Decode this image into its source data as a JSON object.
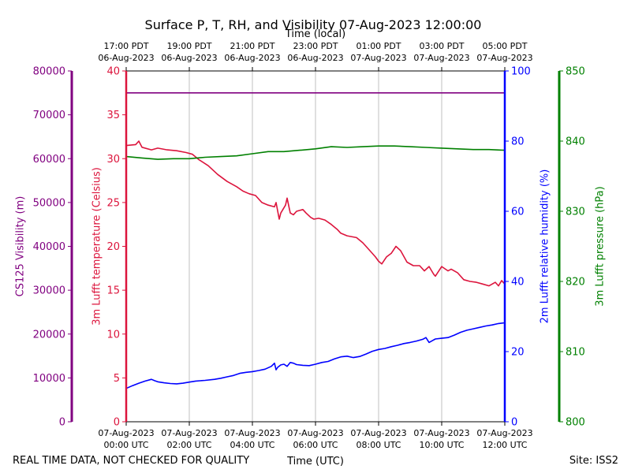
{
  "chart_data": {
    "type": "line",
    "title": "Surface P, T, RH, and Visibility 07-Aug-2023 12:00:00",
    "top_axis_label": "Time (local)",
    "xlabel": "Time (UTC)",
    "footer_left": "REAL TIME DATA, NOT CHECKED FOR QUALITY",
    "footer_right": "Site: ISS2",
    "x_hours_range": [
      0,
      12
    ],
    "x_ticks_bottom": [
      {
        "hour": 0,
        "line1": "07-Aug-2023",
        "line2": "00:00 UTC"
      },
      {
        "hour": 2,
        "line1": "07-Aug-2023",
        "line2": "02:00 UTC"
      },
      {
        "hour": 4,
        "line1": "07-Aug-2023",
        "line2": "04:00 UTC"
      },
      {
        "hour": 6,
        "line1": "07-Aug-2023",
        "line2": "06:00 UTC"
      },
      {
        "hour": 8,
        "line1": "07-Aug-2023",
        "line2": "08:00 UTC"
      },
      {
        "hour": 10,
        "line1": "07-Aug-2023",
        "line2": "10:00 UTC"
      },
      {
        "hour": 12,
        "line1": "07-Aug-2023",
        "line2": "12:00 UTC"
      }
    ],
    "x_ticks_top": [
      {
        "hour": 0,
        "line1": "17:00 PDT",
        "line2": "06-Aug-2023"
      },
      {
        "hour": 2,
        "line1": "19:00 PDT",
        "line2": "06-Aug-2023"
      },
      {
        "hour": 4,
        "line1": "21:00 PDT",
        "line2": "06-Aug-2023"
      },
      {
        "hour": 6,
        "line1": "23:00 PDT",
        "line2": "06-Aug-2023"
      },
      {
        "hour": 8,
        "line1": "01:00 PDT",
        "line2": "07-Aug-2023"
      },
      {
        "hour": 10,
        "line1": "03:00 PDT",
        "line2": "07-Aug-2023"
      },
      {
        "hour": 12,
        "line1": "05:00 PDT",
        "line2": "07-Aug-2023"
      }
    ],
    "axes": [
      {
        "id": "visibility",
        "label": "CS125 Visibility (m)",
        "color": "#800080",
        "range": [
          0,
          80000
        ],
        "ticks": [
          "0",
          "10000",
          "20000",
          "30000",
          "40000",
          "50000",
          "60000",
          "70000",
          "80000"
        ]
      },
      {
        "id": "temperature",
        "label": "3m Lufft temperature (Celsius)",
        "color": "#dc143c",
        "range": [
          0,
          40
        ],
        "ticks": [
          "0",
          "5",
          "10",
          "15",
          "20",
          "25",
          "30",
          "35",
          "40"
        ]
      },
      {
        "id": "humidity",
        "label": "2m Lufft relative humidity (%)",
        "color": "#0000ff",
        "range": [
          0,
          100
        ],
        "ticks": [
          "0",
          "20",
          "40",
          "60",
          "80",
          "100"
        ]
      },
      {
        "id": "pressure",
        "label": "3m Lufft pressure (hPa)",
        "color": "#008000",
        "range": [
          800,
          850
        ],
        "ticks": [
          "800",
          "810",
          "820",
          "830",
          "840",
          "850"
        ]
      }
    ],
    "series": [
      {
        "name": "CS125 Visibility",
        "axis": "visibility",
        "color": "#800080",
        "x": [
          0,
          12
        ],
        "y": [
          75000,
          75000
        ]
      },
      {
        "name": "3m Lufft temperature",
        "axis": "temperature",
        "color": "#dc143c",
        "x": [
          0,
          0.3,
          0.4,
          0.5,
          0.8,
          1.0,
          1.3,
          1.6,
          1.9,
          2.1,
          2.3,
          2.6,
          2.9,
          3.2,
          3.5,
          3.7,
          3.9,
          4.1,
          4.3,
          4.5,
          4.7,
          4.75,
          4.85,
          4.9,
          5.05,
          5.1,
          5.2,
          5.3,
          5.4,
          5.6,
          5.7,
          5.85,
          5.95,
          6.1,
          6.3,
          6.5,
          6.7,
          6.8,
          7.0,
          7.3,
          7.5,
          7.7,
          7.9,
          8.0,
          8.1,
          8.25,
          8.4,
          8.55,
          8.7,
          8.9,
          9.1,
          9.3,
          9.45,
          9.6,
          9.75,
          9.8,
          10.0,
          10.2,
          10.3,
          10.5,
          10.7,
          10.9,
          11.1,
          11.3,
          11.5,
          11.7,
          11.8,
          11.9,
          12.0
        ],
        "y": [
          31.5,
          31.6,
          32.0,
          31.3,
          31.0,
          31.2,
          31.0,
          30.9,
          30.7,
          30.5,
          29.9,
          29.2,
          28.2,
          27.4,
          26.8,
          26.3,
          26.0,
          25.8,
          25.0,
          24.7,
          24.5,
          25.0,
          23.1,
          23.8,
          24.7,
          25.5,
          23.8,
          23.6,
          24.0,
          24.2,
          23.8,
          23.3,
          23.1,
          23.2,
          23.0,
          22.5,
          21.9,
          21.5,
          21.2,
          21.0,
          20.4,
          19.6,
          18.8,
          18.3,
          18.0,
          18.8,
          19.2,
          20.0,
          19.5,
          18.2,
          17.8,
          17.8,
          17.2,
          17.7,
          16.8,
          16.6,
          17.7,
          17.2,
          17.4,
          17.0,
          16.2,
          16.0,
          15.9,
          15.7,
          15.5,
          15.9,
          15.5,
          16.1,
          15.7
        ]
      },
      {
        "name": "2m Lufft relative humidity",
        "axis": "humidity",
        "color": "#0000ff",
        "x": [
          0,
          0.2,
          0.4,
          0.6,
          0.8,
          0.9,
          1.0,
          1.2,
          1.4,
          1.6,
          1.8,
          2.0,
          2.2,
          2.5,
          2.8,
          3.0,
          3.2,
          3.4,
          3.6,
          3.8,
          4.0,
          4.2,
          4.4,
          4.6,
          4.7,
          4.75,
          4.8,
          4.9,
          5.0,
          5.1,
          5.2,
          5.3,
          5.4,
          5.6,
          5.8,
          6.0,
          6.2,
          6.4,
          6.6,
          6.8,
          7.0,
          7.2,
          7.4,
          7.6,
          7.8,
          8.0,
          8.2,
          8.4,
          8.6,
          8.8,
          9.0,
          9.2,
          9.4,
          9.5,
          9.6,
          9.7,
          9.8,
          10.0,
          10.2,
          10.4,
          10.6,
          10.8,
          11.0,
          11.2,
          11.4,
          11.6,
          11.8,
          12.0
        ],
        "y": [
          9.5,
          10.3,
          11.0,
          11.6,
          12.1,
          11.7,
          11.4,
          11.1,
          10.9,
          10.8,
          11.0,
          11.3,
          11.6,
          11.8,
          12.1,
          12.4,
          12.8,
          13.2,
          13.8,
          14.1,
          14.3,
          14.6,
          15.0,
          15.8,
          16.7,
          14.8,
          15.5,
          16.2,
          16.4,
          15.8,
          16.9,
          16.7,
          16.3,
          16.1,
          16.0,
          16.4,
          16.9,
          17.2,
          17.9,
          18.5,
          18.7,
          18.3,
          18.6,
          19.3,
          20.1,
          20.6,
          20.9,
          21.4,
          21.8,
          22.3,
          22.6,
          23.0,
          23.5,
          24.0,
          22.6,
          23.1,
          23.6,
          23.8,
          24.0,
          24.7,
          25.5,
          26.1,
          26.5,
          26.9,
          27.3,
          27.6,
          28.0,
          28.2
        ]
      },
      {
        "name": "3m Lufft pressure",
        "axis": "pressure",
        "color": "#008000",
        "x": [
          0,
          0.5,
          1.0,
          1.5,
          2.0,
          2.5,
          3.0,
          3.5,
          4.0,
          4.5,
          5.0,
          5.5,
          6.0,
          6.5,
          7.0,
          7.5,
          8.0,
          8.5,
          9.0,
          9.5,
          10.0,
          10.5,
          11.0,
          11.5,
          12.0
        ],
        "y": [
          837.8,
          837.6,
          837.4,
          837.5,
          837.5,
          837.7,
          837.8,
          837.9,
          838.2,
          838.5,
          838.5,
          838.7,
          838.9,
          839.2,
          839.1,
          839.2,
          839.3,
          839.3,
          839.2,
          839.1,
          839.0,
          838.9,
          838.8,
          838.8,
          838.7
        ]
      }
    ]
  }
}
